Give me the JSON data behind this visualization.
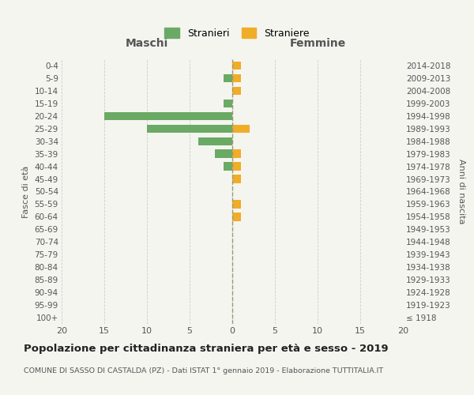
{
  "age_groups": [
    "100+",
    "95-99",
    "90-94",
    "85-89",
    "80-84",
    "75-79",
    "70-74",
    "65-69",
    "60-64",
    "55-59",
    "50-54",
    "45-49",
    "40-44",
    "35-39",
    "30-34",
    "25-29",
    "20-24",
    "15-19",
    "10-14",
    "5-9",
    "0-4"
  ],
  "birth_years": [
    "≤ 1918",
    "1919-1923",
    "1924-1928",
    "1929-1933",
    "1934-1938",
    "1939-1943",
    "1944-1948",
    "1949-1953",
    "1954-1958",
    "1959-1963",
    "1964-1968",
    "1969-1973",
    "1974-1978",
    "1979-1983",
    "1984-1988",
    "1989-1993",
    "1994-1998",
    "1999-2003",
    "2004-2008",
    "2009-2013",
    "2014-2018"
  ],
  "maschi_stranieri": [
    0,
    0,
    0,
    0,
    0,
    0,
    0,
    0,
    0,
    0,
    0,
    0,
    1,
    2,
    4,
    10,
    15,
    1,
    0,
    1,
    0
  ],
  "femmine_straniere": [
    0,
    0,
    0,
    0,
    0,
    0,
    0,
    0,
    1,
    1,
    0,
    1,
    1,
    1,
    0,
    2,
    0,
    0,
    1,
    1,
    1
  ],
  "color_maschi": "#6aaa64",
  "color_femmine": "#f0ad28",
  "bg_color": "#f5f5f0",
  "grid_color": "#cccccc",
  "zero_line_color": "#999977",
  "title": "Popolazione per cittadinanza straniera per età e sesso - 2019",
  "subtitle": "COMUNE DI SASSO DI CASTALDA (PZ) - Dati ISTAT 1° gennaio 2019 - Elaborazione TUTTITALIA.IT",
  "xlabel_left": "Maschi",
  "xlabel_right": "Femmine",
  "ylabel_left": "Fasce di età",
  "ylabel_right": "Anni di nascita",
  "legend_maschi": "Stranieri",
  "legend_femmine": "Straniere",
  "xlim": 20,
  "xtick_vals": [
    -20,
    -15,
    -10,
    -5,
    0,
    5,
    10,
    15,
    20
  ],
  "xtick_labels": [
    "20",
    "15",
    "10",
    "5",
    "0",
    "5",
    "10",
    "15",
    "20"
  ]
}
